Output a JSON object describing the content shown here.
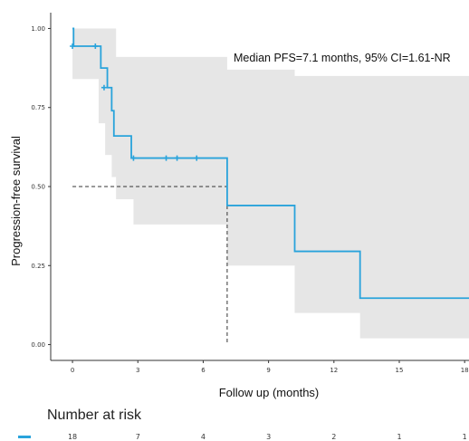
{
  "chart_data": {
    "type": "line",
    "xlabel": "Follow up (months)",
    "ylabel": "Progression-free survival",
    "xlim": [
      -1,
      18.2
    ],
    "ylim": [
      -0.05,
      1.05
    ],
    "x_ticks": [
      0,
      3,
      6,
      9,
      12,
      15,
      18
    ],
    "y_ticks": [
      0.0,
      0.25,
      0.5,
      0.75,
      1.0
    ],
    "x_tick_labels": [
      "0",
      "3",
      "6",
      "9",
      "12",
      "15",
      "18"
    ],
    "y_tick_labels": [
      "0.00",
      "0.25",
      "0.50",
      "0.75",
      "1.00"
    ],
    "grid": false,
    "annotation": "Median PFS=7.1 months, 95% CI=1.61-NR",
    "median": {
      "x": 7.1,
      "y": 0.5
    },
    "series": [
      {
        "steps": [
          {
            "x": 0,
            "y": 1.0
          },
          {
            "x": 0.05,
            "y": 0.944
          },
          {
            "x": 1.3,
            "y": 0.875
          },
          {
            "x": 1.6,
            "y": 0.813
          },
          {
            "x": 1.8,
            "y": 0.74
          },
          {
            "x": 1.9,
            "y": 0.66
          },
          {
            "x": 2.7,
            "y": 0.59
          },
          {
            "x": 7.1,
            "y": 0.44
          },
          {
            "x": 10.2,
            "y": 0.295
          },
          {
            "x": 13.2,
            "y": 0.147
          },
          {
            "x": 18.2,
            "y": 0.147
          }
        ],
        "ci_steps": [
          {
            "x": 0,
            "lower": 0.84,
            "upper": 1.0
          },
          {
            "x": 1.2,
            "lower": 0.7,
            "upper": 1.0
          },
          {
            "x": 1.5,
            "lower": 0.6,
            "upper": 1.0
          },
          {
            "x": 1.8,
            "lower": 0.53,
            "upper": 1.0
          },
          {
            "x": 2.0,
            "lower": 0.46,
            "upper": 0.91
          },
          {
            "x": 2.8,
            "lower": 0.38,
            "upper": 0.91
          },
          {
            "x": 7.1,
            "lower": 0.25,
            "upper": 0.87
          },
          {
            "x": 10.2,
            "lower": 0.1,
            "upper": 0.85
          },
          {
            "x": 13.2,
            "lower": 0.02,
            "upper": 0.85
          },
          {
            "x": 18.2,
            "lower": 0.02,
            "upper": 0.85
          }
        ],
        "censored": [
          {
            "x": 0,
            "y": 0.944
          },
          {
            "x": 1.05,
            "y": 0.944
          },
          {
            "x": 1.45,
            "y": 0.813
          },
          {
            "x": 2.8,
            "y": 0.59
          },
          {
            "x": 4.3,
            "y": 0.59
          },
          {
            "x": 4.8,
            "y": 0.59
          },
          {
            "x": 5.7,
            "y": 0.59
          }
        ]
      }
    ],
    "colors": {
      "line": "#29a3db",
      "ci_band": "#e6e6e6",
      "median_line": "#333333"
    }
  },
  "risk_table": {
    "title": "Number at risk",
    "times": [
      0,
      3,
      6,
      9,
      12,
      15,
      18
    ],
    "counts": [
      "18",
      "7",
      "4",
      "3",
      "2",
      "1",
      "1"
    ]
  }
}
